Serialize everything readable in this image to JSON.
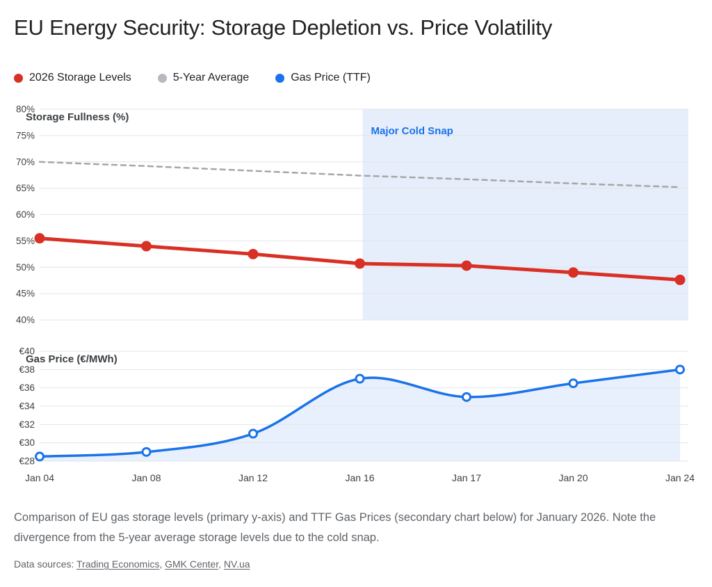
{
  "title": "EU Energy Security: Storage Depletion vs. Price Volatility",
  "legend": {
    "items": [
      {
        "label": "2026 Storage Levels",
        "color": "#d93025"
      },
      {
        "label": "5-Year Average",
        "color": "#b6babe"
      },
      {
        "label": "Gas Price (TTF)",
        "color": "#1a73e8"
      }
    ]
  },
  "chart_data": [
    {
      "type": "line",
      "ylabel": "Storage Fullness (%)",
      "categories": [
        "Jan 04",
        "Jan 08",
        "Jan 12",
        "Jan 16",
        "Jan 17",
        "Jan 20",
        "Jan 24"
      ],
      "series": [
        {
          "name": "2026 Storage Levels",
          "values": [
            55.5,
            54.0,
            52.5,
            50.7,
            50.3,
            49.0,
            47.6
          ],
          "color": "#d93025",
          "line": "solid",
          "points": "filled",
          "smooth": false
        },
        {
          "name": "5-Year Average",
          "values": [
            70.0,
            69.2,
            68.3,
            67.4,
            66.7,
            65.9,
            65.2
          ],
          "color": "#a6a6a6",
          "line": "dashed",
          "points": "none",
          "smooth": false
        }
      ],
      "ylim": [
        40,
        80
      ],
      "ytick_step": 5,
      "ytick_format": "percent",
      "grid": true,
      "legend_position": "top",
      "annotation": {
        "label": "Major Cold Snap",
        "start_category": "Jan 16",
        "label_color": "#1a73e8",
        "band_color": "#e6eefb"
      }
    },
    {
      "type": "area",
      "ylabel": "Gas Price (€/MWh)",
      "categories": [
        "Jan 04",
        "Jan 08",
        "Jan 12",
        "Jan 16",
        "Jan 17",
        "Jan 20",
        "Jan 24"
      ],
      "series": [
        {
          "name": "Gas Price (TTF)",
          "values": [
            28.5,
            29.0,
            31.0,
            37.0,
            35.0,
            36.5,
            38.0
          ],
          "color": "#1a73e8",
          "fill": "#e8f0fd",
          "line": "solid",
          "points": "open",
          "smooth": true
        }
      ],
      "ylim": [
        28,
        40
      ],
      "ytick_step": 2,
      "ytick_format": "euro",
      "grid": true
    }
  ],
  "caption": "Comparison of EU gas storage levels (primary y-axis) and TTF Gas Prices (secondary chart below) for January 2026. Note the divergence from the 5-year average storage levels due to the cold snap.",
  "footer": {
    "label": "Data sources:",
    "sources": [
      "Trading Economics",
      "GMK Center",
      "NV.ua"
    ]
  }
}
